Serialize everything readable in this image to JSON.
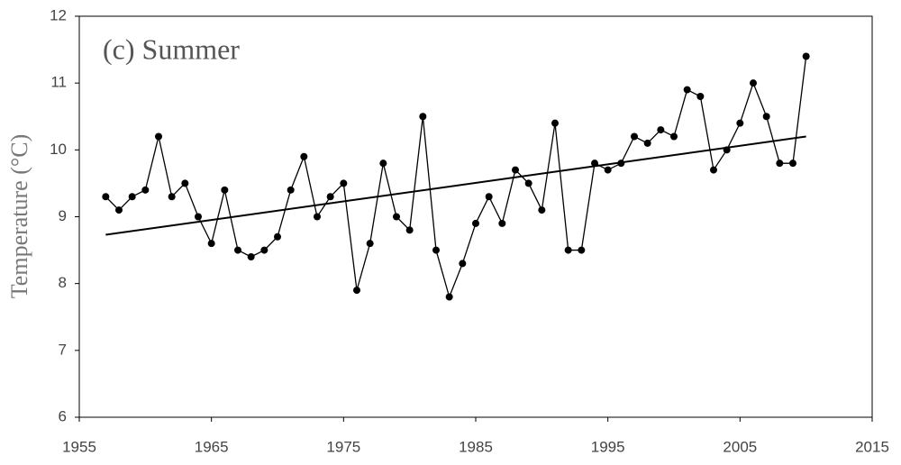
{
  "chart_data": {
    "type": "line",
    "title": "(c) Summer",
    "y_label": "Temperature (°C)",
    "x": [
      1957,
      1958,
      1959,
      1960,
      1961,
      1962,
      1963,
      1964,
      1965,
      1966,
      1967,
      1968,
      1969,
      1970,
      1971,
      1972,
      1973,
      1974,
      1975,
      1976,
      1977,
      1978,
      1979,
      1980,
      1981,
      1982,
      1983,
      1984,
      1985,
      1986,
      1987,
      1988,
      1989,
      1990,
      1991,
      1992,
      1993,
      1994,
      1995,
      1996,
      1997,
      1998,
      1999,
      2000,
      2001,
      2002,
      2003,
      2004,
      2005,
      2006,
      2007,
      2008,
      2009,
      2010
    ],
    "values": [
      9.3,
      9.1,
      9.3,
      9.4,
      10.2,
      9.3,
      9.5,
      9.0,
      8.6,
      9.4,
      8.5,
      8.4,
      8.5,
      8.7,
      9.4,
      9.9,
      9.0,
      9.3,
      9.5,
      7.9,
      8.6,
      9.8,
      9.0,
      8.8,
      10.5,
      8.5,
      7.8,
      8.3,
      8.9,
      9.3,
      8.9,
      9.7,
      9.5,
      9.1,
      10.4,
      8.5,
      8.5,
      9.8,
      9.7,
      9.8,
      10.2,
      10.1,
      10.3,
      10.2,
      10.9,
      10.8,
      9.7,
      10.0,
      10.4,
      11.0,
      10.5,
      9.8,
      9.8,
      11.4
    ],
    "color": "#000000",
    "trend_line": {
      "x": [
        1957,
        2010
      ],
      "values": [
        8.73,
        10.2
      ]
    },
    "xlim": [
      1955,
      2015
    ],
    "xticks": [
      1955,
      1965,
      1975,
      1985,
      1995,
      2005,
      2015
    ],
    "ylim": [
      6,
      12
    ],
    "yticks": [
      6,
      7,
      8,
      9,
      10,
      11,
      12
    ]
  }
}
